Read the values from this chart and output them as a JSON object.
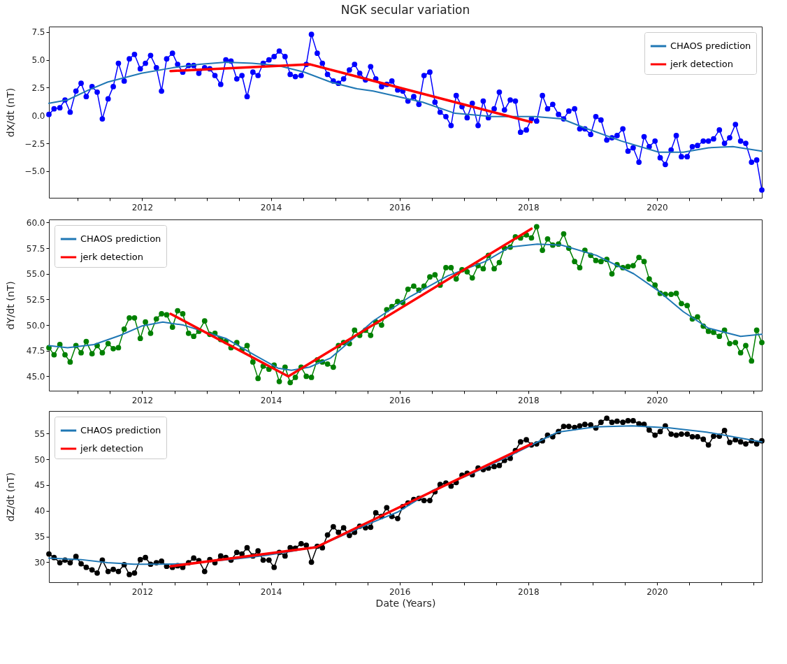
{
  "chart_data": [
    {
      "type": "line",
      "title": "NGK secular variation",
      "ylabel": "dX/dt (nT)",
      "legend": "top right",
      "xlim": [
        2010.55,
        2021.63
      ],
      "ylim": [
        -7.4,
        8.0
      ],
      "xticks": [
        {
          "value": 2011,
          "label": null
        },
        {
          "value": 2011.5,
          "label": null
        },
        2012,
        {
          "value": 2012.5,
          "label": null
        },
        {
          "value": 2013,
          "label": null
        },
        {
          "value": 2013.5,
          "label": null
        },
        2014,
        {
          "value": 2014.5,
          "label": null
        },
        {
          "value": 2015,
          "label": null
        },
        {
          "value": 2015.5,
          "label": null
        },
        2016,
        {
          "value": 2016.5,
          "label": null
        },
        {
          "value": 2017,
          "label": null
        },
        {
          "value": 2017.5,
          "label": null
        },
        2018,
        {
          "value": 2018.5,
          "label": null
        },
        {
          "value": 2019,
          "label": null
        },
        {
          "value": 2019.5,
          "label": null
        },
        2020,
        {
          "value": 2020.5,
          "label": null
        },
        {
          "value": 2021,
          "label": null
        },
        {
          "value": 2021.5,
          "label": null
        }
      ],
      "yticks": [
        {
          "value": -5,
          "label": "−5.0"
        },
        {
          "value": -2.5,
          "label": "−2.5"
        },
        {
          "value": 0,
          "label": "0.0"
        },
        {
          "value": 2.5,
          "label": "2.5"
        },
        {
          "value": 5,
          "label": "5.0"
        },
        {
          "value": 7.5,
          "label": "7.5"
        }
      ],
      "x": [
        2010.55,
        2010.63,
        2010.72,
        2010.8,
        2010.88,
        2010.97,
        2011.05,
        2011.13,
        2011.22,
        2011.3,
        2011.38,
        2011.47,
        2011.55,
        2011.63,
        2011.72,
        2011.8,
        2011.88,
        2011.97,
        2012.05,
        2012.13,
        2012.22,
        2012.3,
        2012.38,
        2012.47,
        2012.55,
        2012.63,
        2012.72,
        2012.8,
        2012.88,
        2012.97,
        2013.05,
        2013.13,
        2013.22,
        2013.3,
        2013.38,
        2013.47,
        2013.55,
        2013.63,
        2013.72,
        2013.8,
        2013.88,
        2013.97,
        2014.05,
        2014.13,
        2014.22,
        2014.3,
        2014.38,
        2014.47,
        2014.55,
        2014.63,
        2014.72,
        2014.8,
        2014.88,
        2014.97,
        2015.05,
        2015.13,
        2015.22,
        2015.3,
        2015.38,
        2015.47,
        2015.55,
        2015.63,
        2015.72,
        2015.8,
        2015.88,
        2015.97,
        2016.05,
        2016.13,
        2016.22,
        2016.3,
        2016.38,
        2016.47,
        2016.55,
        2016.63,
        2016.72,
        2016.8,
        2016.88,
        2016.97,
        2017.05,
        2017.13,
        2017.22,
        2017.3,
        2017.38,
        2017.47,
        2017.55,
        2017.63,
        2017.72,
        2017.8,
        2017.88,
        2017.97,
        2018.05,
        2018.13,
        2018.22,
        2018.3,
        2018.38,
        2018.47,
        2018.55,
        2018.63,
        2018.72,
        2018.8,
        2018.88,
        2018.97,
        2019.05,
        2019.13,
        2019.22,
        2019.3,
        2019.38,
        2019.47,
        2019.55,
        2019.63,
        2019.72,
        2019.8,
        2019.88,
        2019.97,
        2020.05,
        2020.13,
        2020.22,
        2020.3,
        2020.38,
        2020.47,
        2020.55,
        2020.63,
        2020.72,
        2020.8,
        2020.88,
        2020.97,
        2021.05,
        2021.13,
        2021.22,
        2021.3,
        2021.38,
        2021.47,
        2021.55,
        2021.63
      ],
      "series": [
        {
          "color": "#0000ff",
          "marker": "circle",
          "values": [
            0.1,
            0.6,
            0.7,
            1.4,
            0.3,
            2.2,
            2.9,
            1.7,
            2.6,
            2.1,
            -0.3,
            1.5,
            2.6,
            4.7,
            3.1,
            5.1,
            5.5,
            4.2,
            4.7,
            5.4,
            4.3,
            2.2,
            5.1,
            5.6,
            4.6,
            3.9,
            4.5,
            4.5,
            3.8,
            4.3,
            4.2,
            3.6,
            2.8,
            5.0,
            4.9,
            3.3,
            3.6,
            1.7,
            3.9,
            3.6,
            4.7,
            5.0,
            5.3,
            5.8,
            5.3,
            3.7,
            3.5,
            3.6,
            4.6,
            7.3,
            5.6,
            4.7,
            3.7,
            3.1,
            2.9,
            3.3,
            4.1,
            4.6,
            3.8,
            3.2,
            4.4,
            3.3,
            2.6,
            2.8,
            3.1,
            2.3,
            2.2,
            1.3,
            1.7,
            1.0,
            3.6,
            3.9,
            1.2,
            0.3,
            -0.1,
            -0.9,
            1.8,
            0.8,
            -0.2,
            1.1,
            -0.9,
            1.3,
            -0.2,
            0.6,
            2.1,
            0.5,
            1.4,
            1.3,
            -1.5,
            -1.3,
            -0.3,
            -0.5,
            1.8,
            0.6,
            1.0,
            0.1,
            -0.3,
            0.4,
            0.6,
            -1.2,
            -1.2,
            -1.7,
            -0.1,
            -0.4,
            -2.2,
            -2.0,
            -1.8,
            -1.2,
            -3.2,
            -2.9,
            -4.2,
            -1.9,
            -2.8,
            -2.3,
            -3.8,
            -4.4,
            -3.1,
            -1.8,
            -3.7,
            -3.7,
            -2.8,
            -2.7,
            -2.3,
            -2.3,
            -2.1,
            -1.3,
            -2.5,
            -2.0,
            -0.8,
            -2.3,
            -2.5,
            -4.2,
            -4.0,
            -6.7
          ]
        },
        {
          "name": "CHAOS prediction",
          "color": "#1f77b4",
          "x": [
            2010.55,
            2010.84,
            2011.17,
            2011.46,
            2011.99,
            2012.48,
            2012.89,
            2013.3,
            2013.71,
            2014.11,
            2014.52,
            2014.93,
            2015.34,
            2015.59,
            2016.36,
            2016.86,
            2017.44,
            2018.1,
            2018.52,
            2018.87,
            2019.45,
            2020.03,
            2020.41,
            2020.8,
            2021.18,
            2021.63
          ],
          "values": [
            1.1,
            1.4,
            2.3,
            3.0,
            3.8,
            4.3,
            4.6,
            4.8,
            4.7,
            4.5,
            3.9,
            3.0,
            2.4,
            2.2,
            1.2,
            0.2,
            -0.1,
            -0.1,
            -0.3,
            -1.1,
            -2.3,
            -3.3,
            -3.3,
            -2.9,
            -2.8,
            -3.2
          ]
        },
        {
          "name": "jerk detection",
          "color": "#ff0000",
          "x": [
            2012.44,
            2014.61,
            2018.05
          ],
          "values": [
            4.0,
            4.6,
            -0.6
          ]
        }
      ]
    },
    {
      "type": "line",
      "ylabel": "dY/dt (nT)",
      "legend": "top left",
      "xlim": [
        2010.55,
        2021.63
      ],
      "ylim": [
        43.6,
        60.3
      ],
      "xticks": [
        {
          "value": 2011,
          "label": null
        },
        {
          "value": 2011.5,
          "label": null
        },
        2012,
        {
          "value": 2012.5,
          "label": null
        },
        {
          "value": 2013,
          "label": null
        },
        {
          "value": 2013.5,
          "label": null
        },
        2014,
        {
          "value": 2014.5,
          "label": null
        },
        {
          "value": 2015,
          "label": null
        },
        {
          "value": 2015.5,
          "label": null
        },
        2016,
        {
          "value": 2016.5,
          "label": null
        },
        {
          "value": 2017,
          "label": null
        },
        {
          "value": 2017.5,
          "label": null
        },
        2018,
        {
          "value": 2018.5,
          "label": null
        },
        {
          "value": 2019,
          "label": null
        },
        {
          "value": 2019.5,
          "label": null
        },
        2020,
        {
          "value": 2020.5,
          "label": null
        },
        {
          "value": 2021,
          "label": null
        },
        {
          "value": 2021.5,
          "label": null
        }
      ],
      "yticks": [
        {
          "value": 45,
          "label": "45.0"
        },
        {
          "value": 47.5,
          "label": "47.5"
        },
        {
          "value": 50,
          "label": "50.0"
        },
        {
          "value": 52.5,
          "label": "52.5"
        },
        {
          "value": 55,
          "label": "55.0"
        },
        {
          "value": 57.5,
          "label": "57.5"
        },
        {
          "value": 60,
          "label": "60.0"
        }
      ],
      "x": [
        2010.55,
        2010.63,
        2010.72,
        2010.8,
        2010.88,
        2010.97,
        2011.05,
        2011.13,
        2011.22,
        2011.3,
        2011.38,
        2011.47,
        2011.55,
        2011.63,
        2011.72,
        2011.8,
        2011.88,
        2011.97,
        2012.05,
        2012.13,
        2012.22,
        2012.3,
        2012.38,
        2012.47,
        2012.55,
        2012.63,
        2012.72,
        2012.8,
        2012.88,
        2012.97,
        2013.05,
        2013.13,
        2013.22,
        2013.3,
        2013.38,
        2013.47,
        2013.55,
        2013.63,
        2013.72,
        2013.8,
        2013.88,
        2013.97,
        2014.05,
        2014.13,
        2014.22,
        2014.3,
        2014.38,
        2014.47,
        2014.55,
        2014.63,
        2014.72,
        2014.8,
        2014.88,
        2014.97,
        2015.05,
        2015.13,
        2015.22,
        2015.3,
        2015.38,
        2015.47,
        2015.55,
        2015.63,
        2015.72,
        2015.8,
        2015.88,
        2015.97,
        2016.05,
        2016.13,
        2016.22,
        2016.3,
        2016.38,
        2016.47,
        2016.55,
        2016.63,
        2016.72,
        2016.8,
        2016.88,
        2016.97,
        2017.05,
        2017.13,
        2017.22,
        2017.3,
        2017.38,
        2017.47,
        2017.55,
        2017.63,
        2017.72,
        2017.8,
        2017.88,
        2017.97,
        2018.05,
        2018.13,
        2018.22,
        2018.3,
        2018.38,
        2018.47,
        2018.55,
        2018.63,
        2018.72,
        2018.8,
        2018.88,
        2018.97,
        2019.05,
        2019.13,
        2019.22,
        2019.3,
        2019.38,
        2019.47,
        2019.55,
        2019.63,
        2019.72,
        2019.8,
        2019.88,
        2019.97,
        2020.05,
        2020.13,
        2020.22,
        2020.3,
        2020.38,
        2020.47,
        2020.55,
        2020.63,
        2020.72,
        2020.8,
        2020.88,
        2020.97,
        2021.05,
        2021.13,
        2021.22,
        2021.3,
        2021.38,
        2021.47,
        2021.55,
        2021.63
      ],
      "series": [
        {
          "color": "#008000",
          "marker": "circle",
          "values": [
            47.8,
            47.1,
            48.1,
            47.1,
            46.4,
            48.0,
            47.3,
            48.4,
            47.2,
            48.0,
            47.3,
            48.2,
            47.7,
            47.8,
            49.6,
            50.7,
            50.7,
            48.7,
            50.3,
            49.2,
            50.6,
            51.1,
            51.0,
            49.8,
            51.4,
            51.1,
            49.2,
            48.9,
            49.4,
            50.4,
            49.1,
            49.2,
            48.6,
            48.4,
            47.8,
            48.3,
            47.6,
            48.0,
            46.4,
            44.8,
            46.0,
            45.7,
            46.1,
            44.5,
            45.9,
            44.4,
            44.9,
            45.9,
            45.0,
            44.9,
            46.6,
            46.4,
            46.2,
            45.9,
            48.0,
            48.3,
            48.2,
            49.5,
            49.0,
            49.5,
            49.0,
            50.3,
            50.0,
            51.5,
            51.8,
            52.3,
            52.2,
            53.5,
            53.8,
            53.4,
            53.8,
            54.7,
            54.9,
            53.9,
            55.6,
            55.6,
            54.5,
            55.4,
            55.2,
            54.6,
            55.8,
            55.5,
            56.8,
            55.5,
            56.1,
            57.5,
            57.6,
            58.6,
            58.5,
            58.8,
            58.5,
            59.6,
            57.3,
            58.4,
            57.8,
            57.9,
            58.9,
            57.5,
            56.2,
            55.6,
            57.3,
            56.8,
            56.3,
            56.2,
            56.4,
            55.0,
            55.9,
            55.6,
            55.7,
            55.8,
            56.6,
            56.2,
            54.5,
            53.9,
            53.1,
            53.0,
            53.0,
            53.1,
            52.1,
            51.9,
            50.6,
            50.8,
            49.9,
            49.4,
            49.3,
            48.9,
            49.5,
            48.2,
            48.3,
            47.3,
            48.0,
            46.5,
            49.5,
            48.3
          ]
        },
        {
          "name": "CHAOS prediction",
          "color": "#1f77b4",
          "x": [
            2010.55,
            2010.84,
            2011.25,
            2011.66,
            2011.99,
            2012.32,
            2012.64,
            2013.3,
            2013.71,
            2014.11,
            2014.32,
            2014.6,
            2014.93,
            2015.3,
            2015.59,
            2016.17,
            2016.75,
            2017.33,
            2017.71,
            2018.14,
            2018.52,
            2019.06,
            2019.64,
            2020.03,
            2020.41,
            2020.8,
            2021.3,
            2021.63
          ],
          "values": [
            48.0,
            47.8,
            48.1,
            49.0,
            49.9,
            50.3,
            50.0,
            48.7,
            47.2,
            45.8,
            45.6,
            45.9,
            46.8,
            48.8,
            50.4,
            52.8,
            54.8,
            56.2,
            57.6,
            57.9,
            57.8,
            56.8,
            55.0,
            53.3,
            51.3,
            49.7,
            48.9,
            49.1
          ]
        },
        {
          "name": "jerk detection",
          "color": "#ff0000",
          "x": [
            2012.44,
            2014.27,
            2018.05
          ],
          "values": [
            51.1,
            45.0,
            59.4
          ]
        }
      ]
    },
    {
      "type": "line",
      "xlabel": "Date (Years)",
      "ylabel": "dZ/dt (nT)",
      "legend": "top left",
      "xlim": [
        2010.55,
        2021.63
      ],
      "ylim": [
        26.1,
        59.4
      ],
      "xticks": [
        {
          "value": 2011,
          "label": null
        },
        {
          "value": 2011.5,
          "label": null
        },
        2012,
        {
          "value": 2012.5,
          "label": null
        },
        {
          "value": 2013,
          "label": null
        },
        {
          "value": 2013.5,
          "label": null
        },
        2014,
        {
          "value": 2014.5,
          "label": null
        },
        {
          "value": 2015,
          "label": null
        },
        {
          "value": 2015.5,
          "label": null
        },
        2016,
        {
          "value": 2016.5,
          "label": null
        },
        {
          "value": 2017,
          "label": null
        },
        {
          "value": 2017.5,
          "label": null
        },
        2018,
        {
          "value": 2018.5,
          "label": null
        },
        {
          "value": 2019,
          "label": null
        },
        {
          "value": 2019.5,
          "label": null
        },
        2020,
        {
          "value": 2020.5,
          "label": null
        },
        {
          "value": 2021,
          "label": null
        },
        {
          "value": 2021.5,
          "label": null
        }
      ],
      "yticks": [
        30,
        35,
        40,
        45,
        50,
        55
      ],
      "x": [
        2010.55,
        2010.63,
        2010.72,
        2010.8,
        2010.88,
        2010.97,
        2011.05,
        2011.13,
        2011.22,
        2011.3,
        2011.38,
        2011.47,
        2011.55,
        2011.63,
        2011.72,
        2011.8,
        2011.88,
        2011.97,
        2012.05,
        2012.13,
        2012.22,
        2012.3,
        2012.38,
        2012.47,
        2012.55,
        2012.63,
        2012.72,
        2012.8,
        2012.88,
        2012.97,
        2013.05,
        2013.13,
        2013.22,
        2013.3,
        2013.38,
        2013.47,
        2013.55,
        2013.63,
        2013.72,
        2013.8,
        2013.88,
        2013.97,
        2014.05,
        2014.13,
        2014.22,
        2014.3,
        2014.38,
        2014.47,
        2014.55,
        2014.63,
        2014.72,
        2014.8,
        2014.88,
        2014.97,
        2015.05,
        2015.13,
        2015.22,
        2015.3,
        2015.38,
        2015.47,
        2015.55,
        2015.63,
        2015.72,
        2015.8,
        2015.88,
        2015.97,
        2016.05,
        2016.13,
        2016.22,
        2016.3,
        2016.38,
        2016.47,
        2016.55,
        2016.63,
        2016.72,
        2016.8,
        2016.88,
        2016.97,
        2017.05,
        2017.13,
        2017.22,
        2017.3,
        2017.38,
        2017.47,
        2017.55,
        2017.63,
        2017.72,
        2017.8,
        2017.88,
        2017.97,
        2018.05,
        2018.13,
        2018.22,
        2018.3,
        2018.38,
        2018.47,
        2018.55,
        2018.63,
        2018.72,
        2018.8,
        2018.88,
        2018.97,
        2019.05,
        2019.13,
        2019.22,
        2019.3,
        2019.38,
        2019.47,
        2019.55,
        2019.63,
        2019.72,
        2019.8,
        2019.88,
        2019.97,
        2020.05,
        2020.13,
        2020.22,
        2020.3,
        2020.38,
        2020.47,
        2020.55,
        2020.63,
        2020.72,
        2020.8,
        2020.88,
        2020.97,
        2021.05,
        2021.13,
        2021.22,
        2021.3,
        2021.38,
        2021.47,
        2021.55,
        2021.63
      ],
      "series": [
        {
          "color": "#000000",
          "marker": "circle",
          "values": [
            31.6,
            30.9,
            29.9,
            30.4,
            29.9,
            31.1,
            29.7,
            29.0,
            28.5,
            27.9,
            30.4,
            28.2,
            28.6,
            28.2,
            29.5,
            27.6,
            27.9,
            30.5,
            30.9,
            29.6,
            29.9,
            30.2,
            29.2,
            29.0,
            29.3,
            29.0,
            29.9,
            30.8,
            30.3,
            28.2,
            30.5,
            29.9,
            31.2,
            30.9,
            30.4,
            31.9,
            31.6,
            32.8,
            31.2,
            32.2,
            30.4,
            30.4,
            29.0,
            31.9,
            31.2,
            32.8,
            32.7,
            33.6,
            33.3,
            30.0,
            33.1,
            32.8,
            35.3,
            36.9,
            35.8,
            36.7,
            35.2,
            35.8,
            37.0,
            36.7,
            36.8,
            39.6,
            38.9,
            40.6,
            38.9,
            38.5,
            40.8,
            41.5,
            42.2,
            42.4,
            42.0,
            42.0,
            43.7,
            45.1,
            45.4,
            44.8,
            45.5,
            46.9,
            47.3,
            47.0,
            48.3,
            48.0,
            48.3,
            48.6,
            48.8,
            49.8,
            50.2,
            51.7,
            53.4,
            53.8,
            52.8,
            53.0,
            53.6,
            54.7,
            54.4,
            55.4,
            56.4,
            56.4,
            56.2,
            56.5,
            56.8,
            56.7,
            56.1,
            57.2,
            58.0,
            57.2,
            57.4,
            57.2,
            57.5,
            57.5,
            56.9,
            56.8,
            55.7,
            54.7,
            55.4,
            56.5,
            54.9,
            54.7,
            54.9,
            54.9,
            54.4,
            54.4,
            53.9,
            52.8,
            54.5,
            54.5,
            55.6,
            53.3,
            53.8,
            53.4,
            53.0,
            53.6,
            53.0,
            53.6
          ]
        },
        {
          "name": "CHAOS prediction",
          "color": "#1f77b4",
          "x": [
            2010.55,
            2011.05,
            2011.46,
            2011.87,
            2012.28,
            2012.69,
            2013.1,
            2013.5,
            2013.91,
            2014.32,
            2014.73,
            2015.15,
            2015.59,
            2015.98,
            2016.52,
            2017.1,
            2017.68,
            2018.07,
            2018.46,
            2019.04,
            2019.62,
            2020.2,
            2020.77,
            2021.63
          ],
          "values": [
            30.8,
            30.5,
            29.9,
            29.6,
            29.6,
            29.7,
            30.2,
            30.7,
            31.3,
            32.1,
            33.1,
            35.4,
            37.8,
            39.8,
            44.0,
            47.1,
            50.5,
            52.9,
            55.3,
            56.3,
            56.5,
            56.1,
            55.3,
            53.4
          ]
        },
        {
          "name": "jerk detection",
          "color": "#ff0000",
          "x": [
            2012.44,
            2014.7,
            2018.05
          ],
          "values": [
            29.2,
            32.9,
            53.0
          ]
        }
      ]
    }
  ]
}
